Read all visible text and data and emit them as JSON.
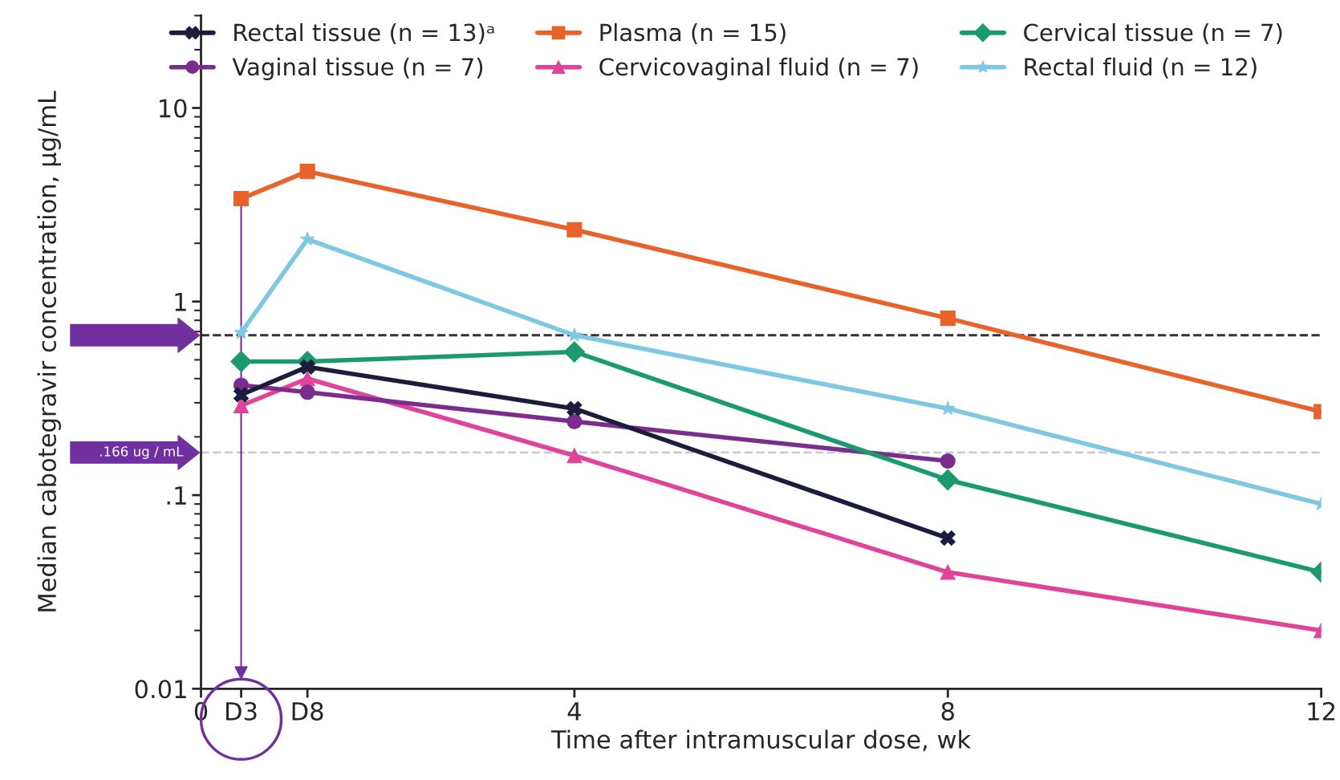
{
  "chart_data": {
    "type": "line",
    "xlabel": "Time after intramuscular dose, wk",
    "ylabel": "Median cabotegravir concentration, µg/mL",
    "x": [
      0.43,
      1.14,
      4,
      8,
      12
    ],
    "series": [
      {
        "name": "Rectal tissue (n = 13)ᵃ",
        "color": "#1c1c3c",
        "marker": "cross",
        "x": [
          0.43,
          1.14,
          4,
          8
        ],
        "values": [
          0.33,
          0.46,
          0.28,
          0.06
        ]
      },
      {
        "name": "Plasma (n = 15)",
        "color": "#e8632b",
        "marker": "square",
        "values": [
          3.4,
          4.7,
          2.35,
          0.82,
          0.27
        ]
      },
      {
        "name": "Cervical tissue (n = 7)",
        "color": "#1a9a6e",
        "marker": "diamond",
        "values": [
          0.49,
          0.49,
          0.55,
          0.12,
          0.04
        ]
      },
      {
        "name": "Vaginal tissue (n = 7)",
        "color": "#7b2d8e",
        "marker": "circle",
        "x": [
          0.43,
          1.14,
          4,
          8
        ],
        "values": [
          0.37,
          0.34,
          0.24,
          0.15
        ]
      },
      {
        "name": "Cervicovaginal fluid (n = 7)",
        "color": "#e0449a",
        "marker": "triangle",
        "values": [
          0.29,
          0.4,
          0.16,
          0.04,
          0.02
        ]
      },
      {
        "name": "Rectal fluid (n = 12)",
        "color": "#7ec8e3",
        "marker": "star",
        "values": [
          0.69,
          2.1,
          0.67,
          0.28,
          0.09
        ]
      }
    ],
    "log": "y",
    "xlim": [
      0,
      12
    ],
    "xticks": [
      0,
      {
        "value": 0.43,
        "label": "D3"
      },
      {
        "value": 1.14,
        "label": "D8"
      },
      4,
      8,
      12
    ],
    "ylim": [
      0.01,
      30
    ],
    "yticks": [
      0.01,
      {
        "value": 0.1,
        "label": ".1"
      },
      1,
      10
    ],
    "ref_lines": [
      {
        "axis": "y",
        "value": 0.67,
        "color": "#333333",
        "line_style": "dashed"
      },
      {
        "axis": "y",
        "value": 0.166,
        "color": "#cccccc",
        "line_style": "dashed",
        "label": ".166 ug / mL"
      }
    ],
    "grid": false,
    "legend": "top",
    "line_style": "solid"
  }
}
